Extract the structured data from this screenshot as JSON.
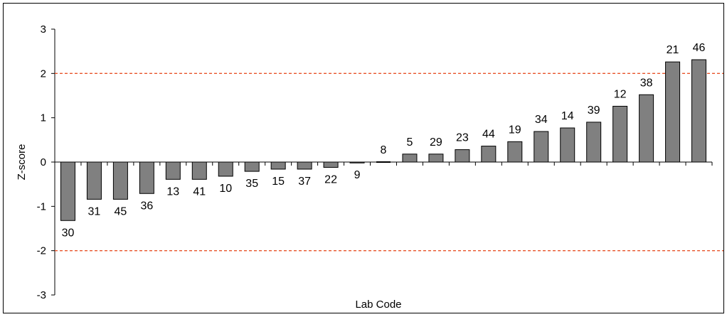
{
  "chart_data": {
    "type": "bar",
    "xlabel": "Lab Code",
    "ylabel": "Z-score",
    "ylim": [
      -3,
      3
    ],
    "yticks": [
      -3,
      -2,
      -1,
      0,
      1,
      2,
      3
    ],
    "categories": [
      "30",
      "31",
      "45",
      "36",
      "13",
      "41",
      "10",
      "35",
      "15",
      "37",
      "22",
      "9",
      "8",
      "5",
      "29",
      "23",
      "44",
      "19",
      "34",
      "14",
      "39",
      "12",
      "38",
      "21",
      "46"
    ],
    "values": [
      -1.32,
      -0.84,
      -0.84,
      -0.71,
      -0.39,
      -0.39,
      -0.32,
      -0.21,
      -0.16,
      -0.16,
      -0.12,
      -0.02,
      0.0,
      0.18,
      0.18,
      0.28,
      0.36,
      0.46,
      0.69,
      0.77,
      0.9,
      1.26,
      1.52,
      2.26,
      2.31
    ],
    "reference_lines": [
      2,
      -2
    ],
    "colors": {
      "bar": "#808080",
      "bar_edge": "#000000",
      "reference_line": "#e8542a"
    },
    "grid": false,
    "legend": "none"
  }
}
